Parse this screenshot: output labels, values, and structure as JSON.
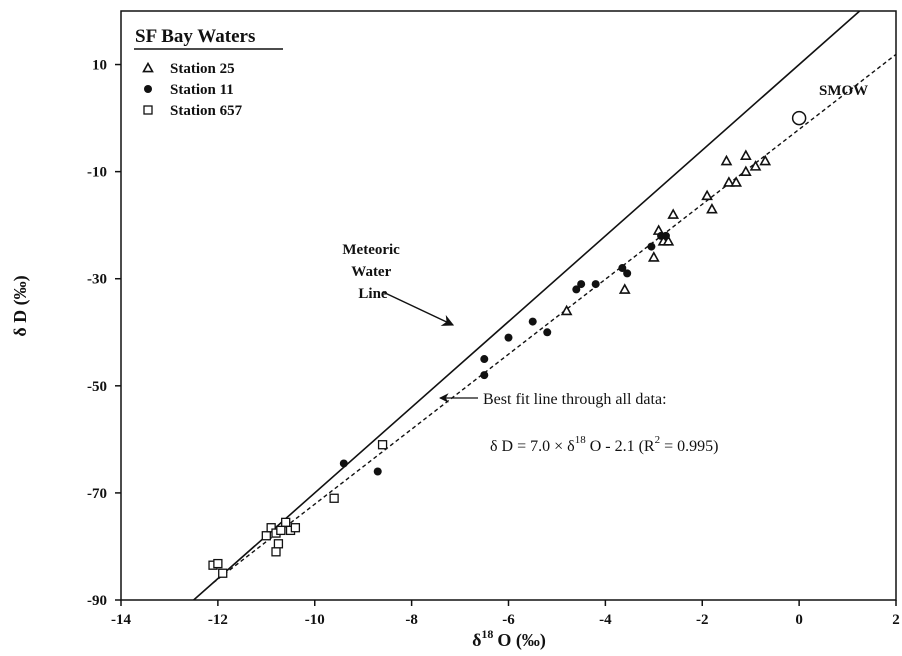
{
  "chart_data": {
    "type": "scatter",
    "xlabel": "δ 18 O (‰)",
    "ylabel": "δ D (‰)",
    "xlim": [
      -14,
      2
    ],
    "ylim": [
      -90,
      20
    ],
    "x_ticks": [
      -14,
      -12,
      -10,
      -8,
      -6,
      -4,
      -2,
      0,
      2
    ],
    "y_ticks": [
      -90,
      -70,
      -50,
      -30,
      -10,
      10
    ],
    "grid": false,
    "legend": {
      "title": "SF Bay Waters",
      "placement": "top-left"
    },
    "series": [
      {
        "name": "Station 25",
        "marker": "triangle",
        "points": [
          [
            -4.8,
            -36
          ],
          [
            -3.6,
            -32
          ],
          [
            -3.0,
            -26
          ],
          [
            -2.9,
            -21
          ],
          [
            -2.8,
            -23
          ],
          [
            -2.7,
            -23
          ],
          [
            -2.6,
            -18
          ],
          [
            -1.9,
            -14.5
          ],
          [
            -1.8,
            -17
          ],
          [
            -1.5,
            -8
          ],
          [
            -1.45,
            -12
          ],
          [
            -1.3,
            -12
          ],
          [
            -1.1,
            -7
          ],
          [
            -1.1,
            -10
          ],
          [
            -0.9,
            -9
          ],
          [
            -0.7,
            -8
          ]
        ]
      },
      {
        "name": "Station 11",
        "marker": "filled-circle",
        "points": [
          [
            -9.4,
            -64.5
          ],
          [
            -8.7,
            -66
          ],
          [
            -6.5,
            -45
          ],
          [
            -6.5,
            -48
          ],
          [
            -6.0,
            -41
          ],
          [
            -5.5,
            -38
          ],
          [
            -5.2,
            -40
          ],
          [
            -4.6,
            -32
          ],
          [
            -4.5,
            -31
          ],
          [
            -4.2,
            -31
          ],
          [
            -3.65,
            -28
          ],
          [
            -3.55,
            -29
          ],
          [
            -3.05,
            -24
          ],
          [
            -2.85,
            -22
          ],
          [
            -2.75,
            -22
          ]
        ]
      },
      {
        "name": "Station 657",
        "marker": "open-square",
        "points": [
          [
            -12.1,
            -83.5
          ],
          [
            -12.0,
            -83.2
          ],
          [
            -11.9,
            -85
          ],
          [
            -11.0,
            -78
          ],
          [
            -10.9,
            -76.5
          ],
          [
            -10.8,
            -77.5
          ],
          [
            -10.8,
            -81
          ],
          [
            -10.75,
            -79.5
          ],
          [
            -10.6,
            -75.5
          ],
          [
            -10.5,
            -77
          ],
          [
            -10.4,
            -76.5
          ],
          [
            -9.6,
            -71
          ],
          [
            -8.6,
            -61
          ],
          [
            -10.7,
            -77
          ]
        ]
      },
      {
        "name": "SMOW",
        "marker": "open-circle-large",
        "points": [
          [
            0,
            0
          ]
        ]
      }
    ],
    "lines": [
      {
        "name": "Meteoric Water Line",
        "style": "solid",
        "slope": 8,
        "intercept": 10,
        "x_range": [
          -12.5,
          1.25
        ]
      },
      {
        "name": "Best fit line through all data",
        "style": "dashed",
        "slope": 7.0,
        "intercept": -2.1,
        "x_range": [
          -12.1,
          2
        ]
      }
    ],
    "annotations": {
      "smow_label": "SMOW",
      "mwl_label_lines": [
        "Meteoric",
        "Water",
        "Line"
      ],
      "bestfit_label": "Best fit line through all data:",
      "equation_main": "δ D =  7.0 × δ",
      "equation_sup": "18",
      "equation_rest": " O - 2.1",
      "equation_r2_pre": "(R",
      "equation_r2_sup": "2",
      "equation_r2_post": " = 0.995)"
    },
    "xlabel_parts": {
      "pre": "δ",
      "sup": "18",
      "post": "O (‰)"
    }
  }
}
